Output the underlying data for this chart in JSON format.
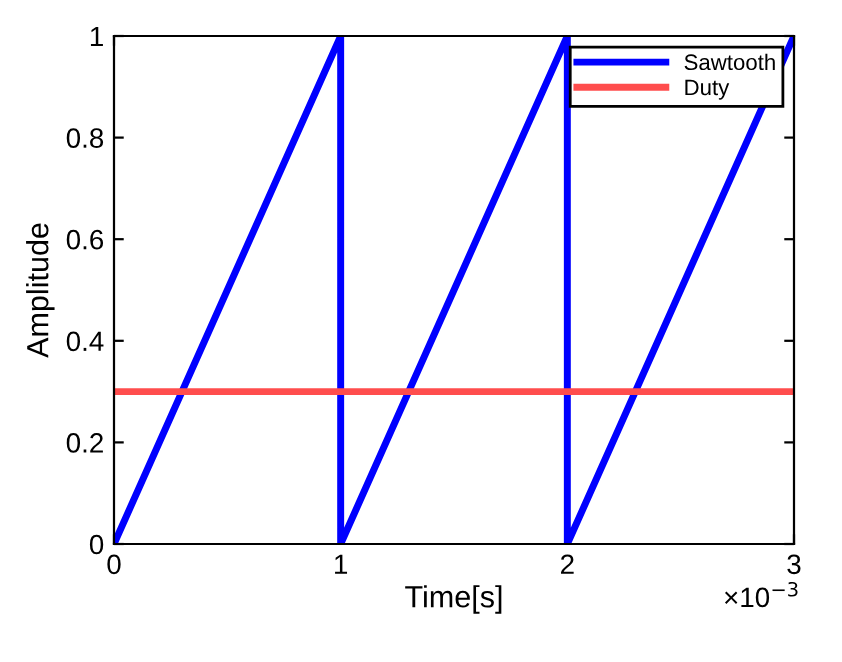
{
  "chart_data": {
    "type": "line",
    "xlabel": "Time[s]",
    "ylabel": "Amplitude",
    "series": [
      {
        "name": "Sawtooth",
        "color": "#0000ff",
        "x": [
          0,
          1,
          1,
          2,
          2,
          3
        ],
        "values": [
          0,
          1,
          0,
          1,
          0,
          1
        ]
      },
      {
        "name": "Duty",
        "color": "#ff4d4d",
        "x": [
          0,
          3
        ],
        "values": [
          0.3,
          0.3
        ]
      }
    ],
    "xlim": [
      0,
      3
    ],
    "xticks": [
      0,
      1,
      2,
      3
    ],
    "ylim": [
      0,
      1
    ],
    "yticks": [
      0,
      0.2,
      0.4,
      0.6,
      0.8,
      1
    ],
    "annotations": [
      "×10$^{−3}$"
    ],
    "legend": "top right",
    "grid": false
  }
}
